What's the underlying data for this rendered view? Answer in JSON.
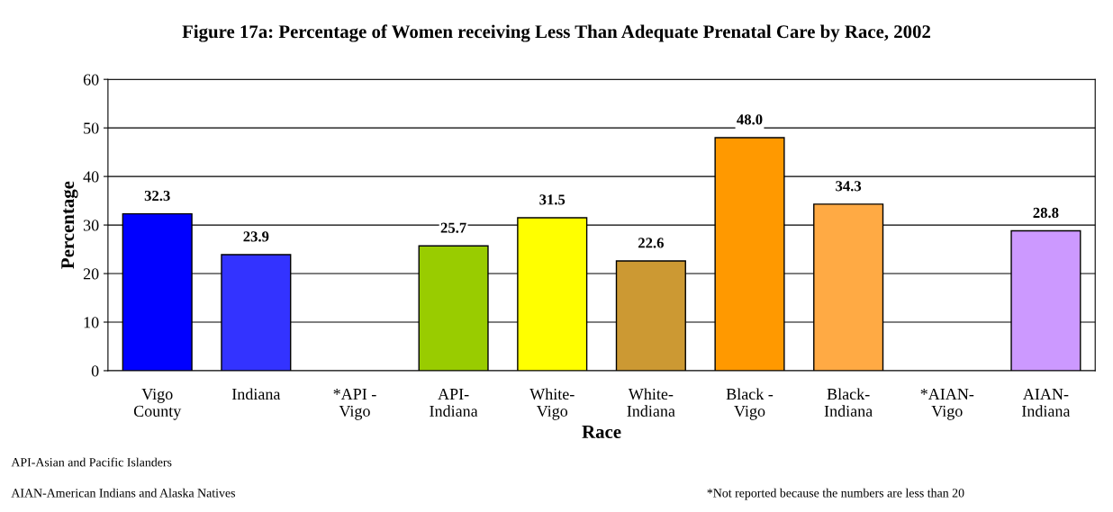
{
  "chart_data": {
    "type": "bar",
    "title": "Figure 17a: Percentage of Women receiving Less Than Adequate Prenatal Care by Race, 2002",
    "xlabel": "Race",
    "ylabel": "Percentage",
    "categories": [
      "Vigo\nCounty",
      "Indiana",
      "*API -\nVigo",
      "API-\nIndiana",
      "White-\nVigo",
      "White-\nIndiana",
      "Black -\nVigo",
      "Black-\nIndiana",
      "*AIAN-\nVigo",
      "AIAN-\nIndiana"
    ],
    "values": [
      32.3,
      23.9,
      null,
      25.7,
      31.5,
      22.6,
      48.0,
      34.3,
      null,
      28.8
    ],
    "value_labels": [
      "32.3",
      "23.9",
      null,
      "25.7",
      "31.5",
      "22.6",
      "48.0",
      "34.3",
      null,
      "28.8"
    ],
    "colors": [
      "#0000ff",
      "#3333ff",
      "#808080",
      "#99cc00",
      "#ffff00",
      "#cc9933",
      "#ff9900",
      "#ffaa44",
      "#808080",
      "#cc99ff"
    ],
    "ylim": [
      0,
      60
    ],
    "yticks": [
      0,
      10,
      20,
      30,
      40,
      50,
      60
    ],
    "grid": "y",
    "legend": false,
    "annotations": [
      "API-Asian and Pacific Islanders",
      "AIAN-American Indians and Alaska Natives",
      "*Not reported because the numbers are less than 20"
    ]
  }
}
